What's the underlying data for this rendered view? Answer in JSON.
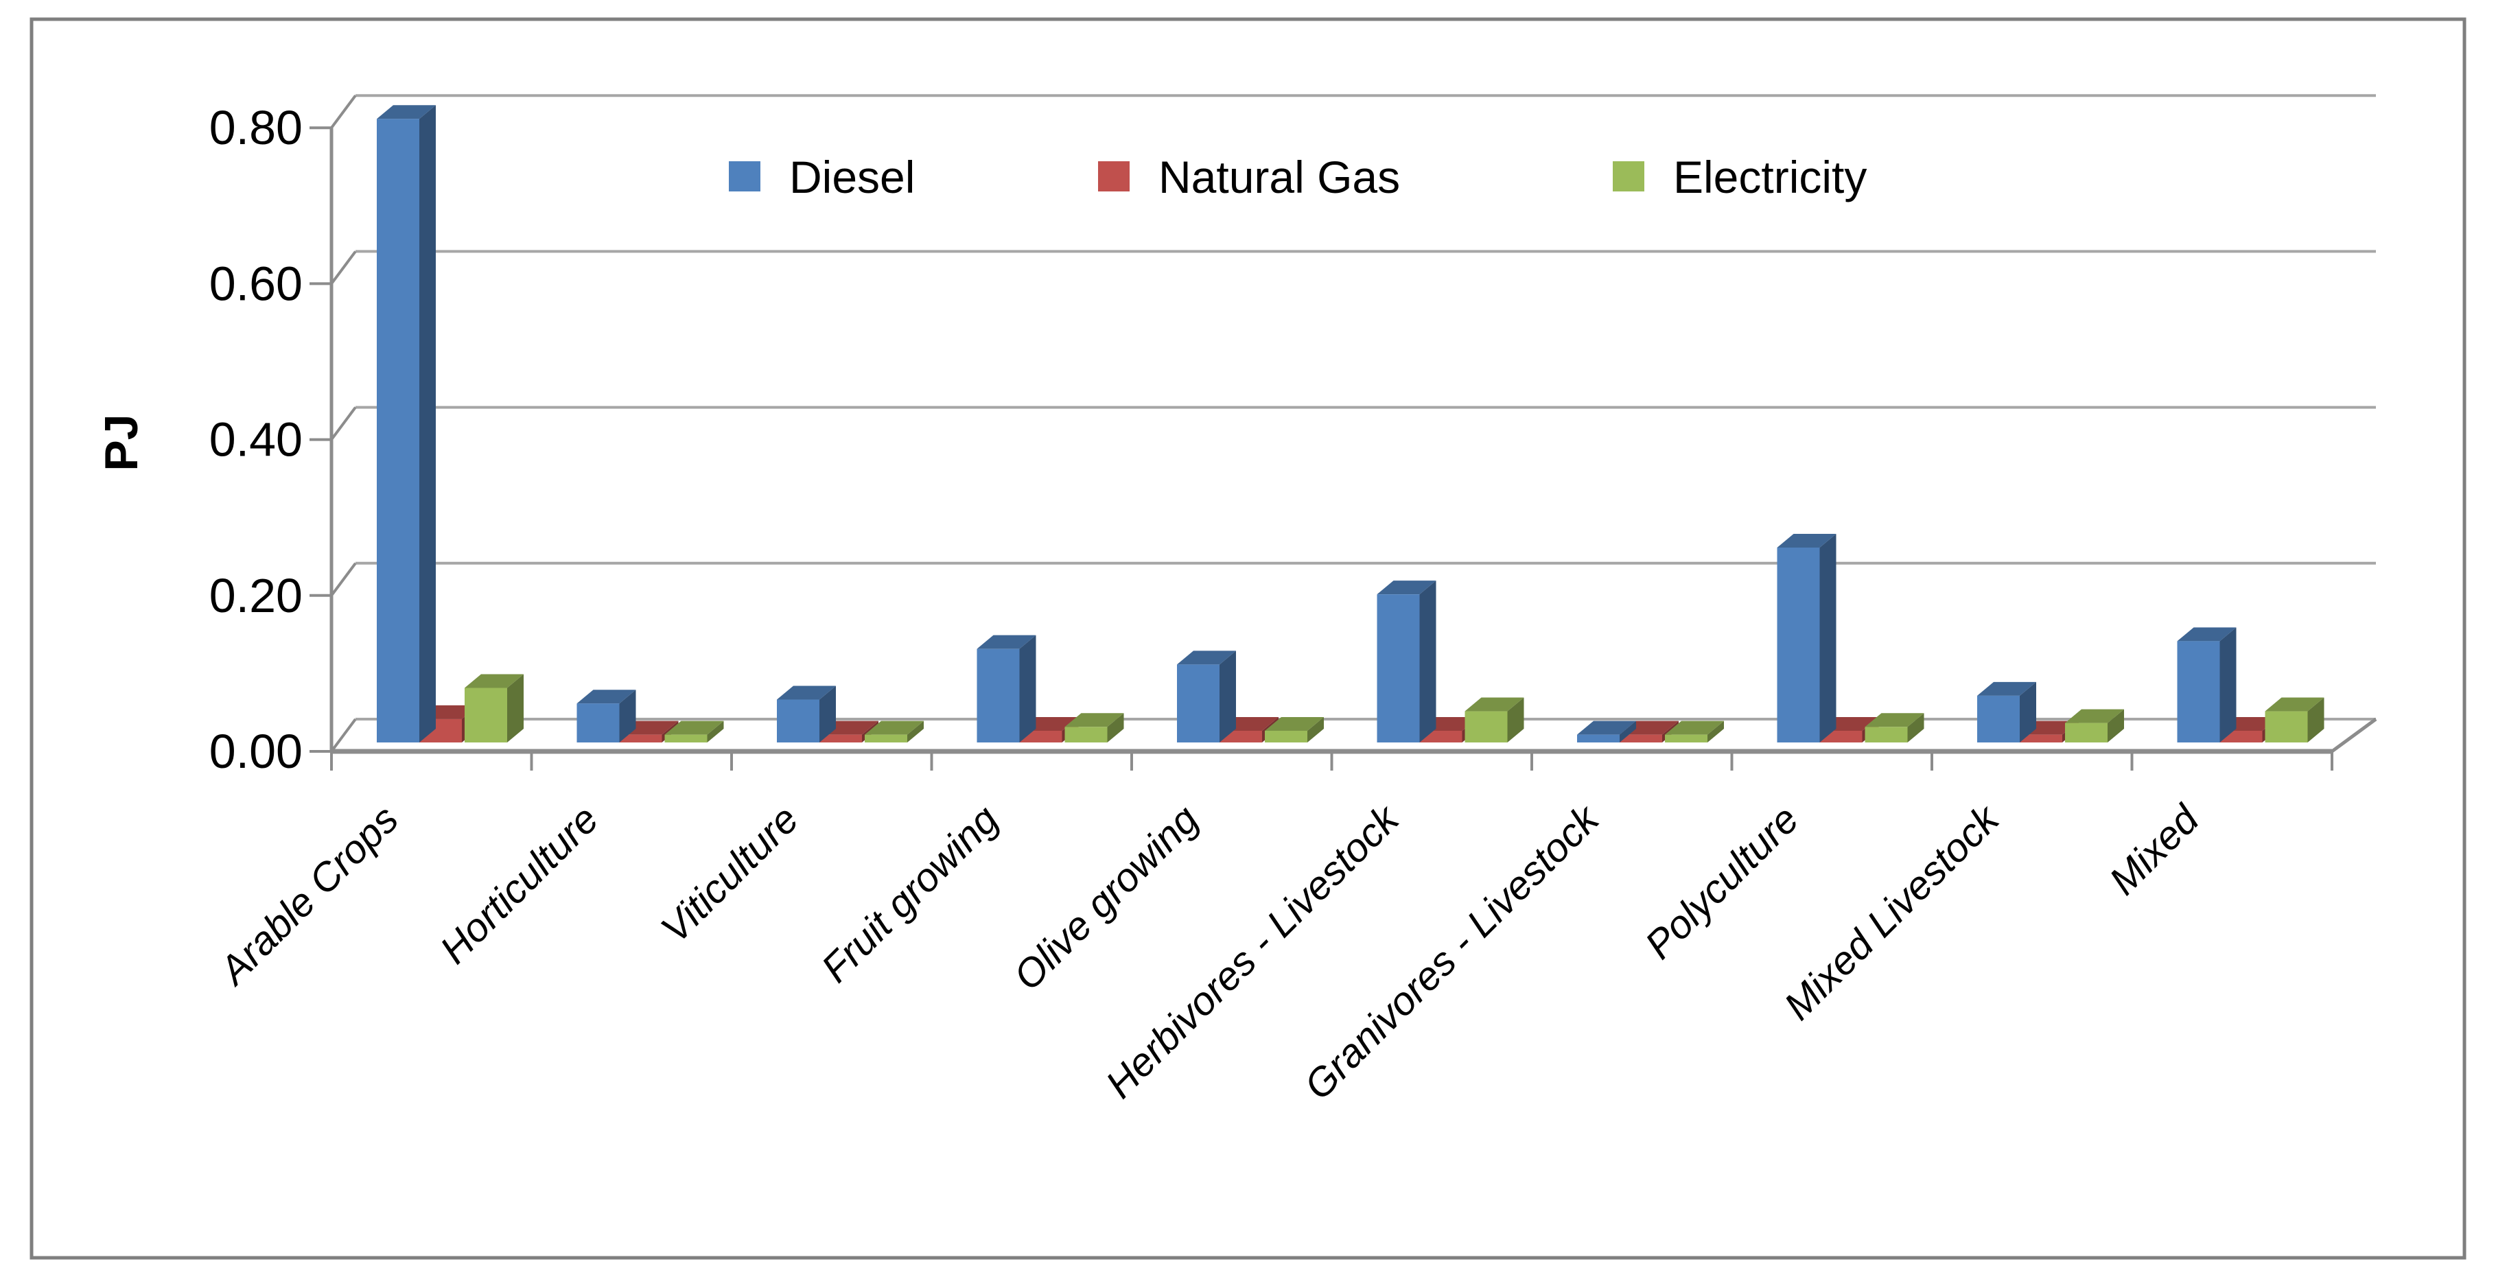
{
  "chart_data": {
    "type": "bar",
    "style": "3d-column",
    "title": "",
    "ylabel": "PJ",
    "xlabel": "",
    "ylim": [
      0,
      0.8
    ],
    "y_ticks": [
      "0.00",
      "0.20",
      "0.40",
      "0.60",
      "0.80"
    ],
    "y_tick_values": [
      0,
      0.2,
      0.4,
      0.6,
      0.8
    ],
    "grid": true,
    "legend_position": "top-center",
    "categories": [
      "Arable Crops",
      "Horticulture",
      "Viticulture",
      "Fruit growing",
      "Olive growing",
      "Herbivores - Livestock",
      "Granivores - Livestock",
      "Polyculture",
      "Mixed Livestock",
      "Mixed"
    ],
    "series": [
      {
        "name": "Diesel",
        "color": "#4F81BD",
        "values": [
          0.8,
          0.05,
          0.055,
          0.12,
          0.1,
          0.19,
          0.01,
          0.25,
          0.06,
          0.13
        ]
      },
      {
        "name": "Natural Gas",
        "color": "#C0504D",
        "values": [
          0.03,
          0.01,
          0.01,
          0.015,
          0.015,
          0.015,
          0.01,
          0.015,
          0.01,
          0.015
        ]
      },
      {
        "name": "Electricity",
        "color": "#9BBB59",
        "values": [
          0.07,
          0.01,
          0.01,
          0.02,
          0.015,
          0.04,
          0.01,
          0.02,
          0.025,
          0.04
        ]
      }
    ]
  },
  "legend": {
    "items": [
      {
        "label": "Diesel",
        "color": "#4F81BD"
      },
      {
        "label": "Natural Gas",
        "color": "#C0504D"
      },
      {
        "label": "Electricity",
        "color": "#9BBB59"
      }
    ]
  },
  "colors": {
    "grid_line": "#A6A6A6",
    "axis_frame": "#8C8C8C",
    "figure_border": "#7F7F7F",
    "background": "#FFFFFF",
    "text": "#000000"
  }
}
